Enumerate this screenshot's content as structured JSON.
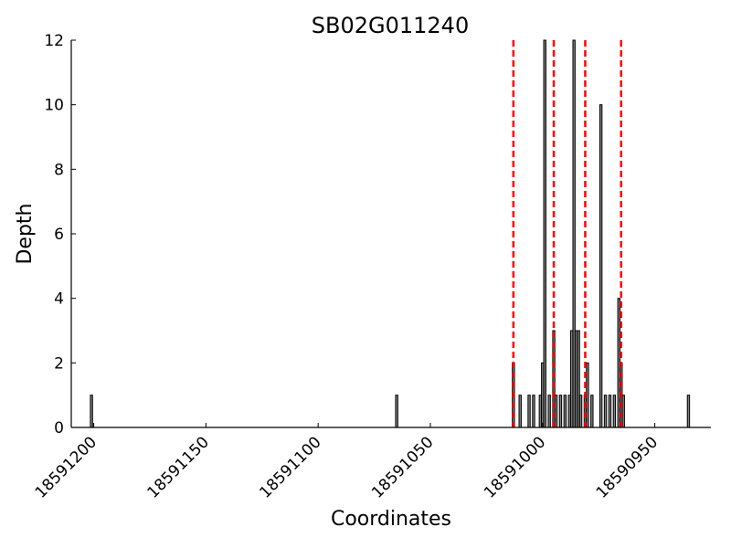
{
  "chart_data": {
    "type": "bar",
    "title": "SB02G011240",
    "xlabel": "Coordinates",
    "ylabel": "Depth",
    "x_reversed": true,
    "xlim": [
      18591210,
      18590925
    ],
    "ylim": [
      0,
      12
    ],
    "xticks": [
      18591200,
      18591150,
      18591100,
      18591050,
      18591000,
      18590950
    ],
    "xtick_labels": [
      "18591200",
      "18591150",
      "18591100",
      "18591050",
      "18591000",
      "18590950"
    ],
    "yticks": [
      0,
      2,
      4,
      6,
      8,
      10,
      12
    ],
    "ytick_labels": [
      "0",
      "2",
      "4",
      "6",
      "8",
      "10",
      "12"
    ],
    "grid": false,
    "bar_color": "#000000",
    "bar_fill": "#7f7f7f",
    "x": [
      18591201,
      18591065,
      18591013,
      18591010,
      18591006,
      18591004,
      18591001,
      18591000,
      18590999,
      18590997,
      18590995,
      18590994,
      18590992,
      18590990,
      18590988,
      18590987,
      18590986,
      18590985,
      18590984,
      18590983,
      18590981,
      18590980,
      18590978,
      18590974,
      18590972,
      18590970,
      18590968,
      18590966,
      18590965,
      18590964,
      18590935
    ],
    "values": [
      1,
      1,
      2,
      1,
      1,
      1,
      1,
      2,
      12,
      1,
      3,
      1,
      1,
      1,
      1,
      3,
      12,
      3,
      3,
      1,
      1,
      2,
      1,
      10,
      1,
      1,
      1,
      4,
      2,
      1,
      1
    ],
    "markers": {
      "color": "#ff0000",
      "style": "dashed",
      "x": [
        18591013,
        18590995,
        18590981,
        18590965
      ]
    }
  }
}
